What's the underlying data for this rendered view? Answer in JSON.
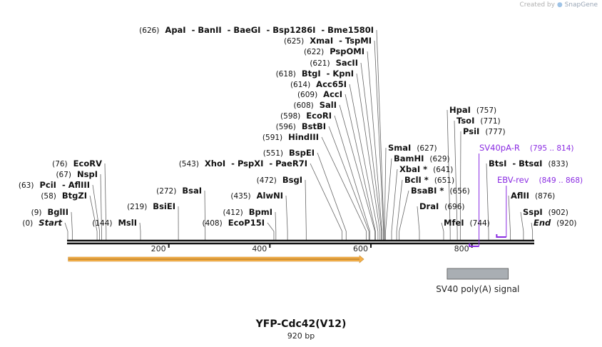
{
  "credit": {
    "prefix": "Created by",
    "brand": "SnapGene"
  },
  "plasmid": {
    "name": "YFP-Cdc42(V12)",
    "length_label": "920 bp",
    "length": 920
  },
  "ruler_ticks": [
    {
      "pos": 200,
      "label": "200"
    },
    {
      "pos": 400,
      "label": "400"
    },
    {
      "pos": 600,
      "label": "600"
    },
    {
      "pos": 800,
      "label": "800"
    }
  ],
  "labels": [
    {
      "text": "(626)  ApaI  - BanII  - BaeGI  - Bsp1286I  - Bme1580I",
      "pos": 626
    },
    {
      "text": "(625)  XmaI  - TspMI",
      "pos": 625
    },
    {
      "text": "(622)  PspOMI",
      "pos": 622
    },
    {
      "text": "(621)  SacII",
      "pos": 621
    },
    {
      "text": "(618)  BtgI  - KpnI",
      "pos": 618
    },
    {
      "text": "(614)  Acc65I",
      "pos": 614
    },
    {
      "text": "(609)  AccI",
      "pos": 609
    },
    {
      "text": "(608)  SalI",
      "pos": 608
    },
    {
      "text": "(598)  EcoRI",
      "pos": 598
    },
    {
      "text": "(596)  BstBI",
      "pos": 596
    },
    {
      "text": "(591)  HindIII",
      "pos": 591
    },
    {
      "text": "(551)  BspEI",
      "pos": 551
    },
    {
      "text": "(543)  XhoI  - PspXI  - PaeR7I",
      "pos": 543
    },
    {
      "text": "(472)  BsgI",
      "pos": 472
    },
    {
      "text": "(435)  AlwNI",
      "pos": 435
    },
    {
      "text": "(412)  BpmI",
      "pos": 412
    },
    {
      "text": "(408)  EcoP15I",
      "pos": 408
    },
    {
      "text": "(272)  BsaI",
      "pos": 272
    },
    {
      "text": "(219)  BsiEI",
      "pos": 219
    },
    {
      "text": "(144)  MslI",
      "pos": 144
    },
    {
      "text": "(76)  EcoRV",
      "pos": 76
    },
    {
      "text": "(67)  NspI",
      "pos": 67
    },
    {
      "text": "(63)  PciI  - AflIII",
      "pos": 63
    },
    {
      "text": "(58)  BtgZI",
      "pos": 58
    },
    {
      "text": "(9)  BglII",
      "pos": 9
    },
    {
      "text": "(0)  Start",
      "pos": 0
    },
    {
      "text": "SmaI  (627)",
      "pos": 627
    },
    {
      "text": "BamHI  (629)",
      "pos": 629
    },
    {
      "text": "XbaI *  (641)",
      "pos": 641
    },
    {
      "text": "BclI *  (651)",
      "pos": 651
    },
    {
      "text": "BsaBI *  (656)",
      "pos": 656
    },
    {
      "text": "DraI  (696)",
      "pos": 696
    },
    {
      "text": "MfeI  (744)",
      "pos": 744
    },
    {
      "text": "HpaI  (757)",
      "pos": 757
    },
    {
      "text": "TsoI  (771)",
      "pos": 771
    },
    {
      "text": "PsiI  (777)",
      "pos": 777
    },
    {
      "text": "BtsI  - BtsαI  (833)",
      "pos": 833
    },
    {
      "text": "AflII  (876)",
      "pos": 876
    },
    {
      "text": "SspI  (902)",
      "pos": 902
    },
    {
      "text": "End  (920)",
      "pos": 920
    }
  ],
  "primers": [
    {
      "name": "SV40pA-R",
      "range": "(795 .. 814)",
      "start": 795,
      "end": 814,
      "direction": "reverse"
    },
    {
      "name": "EBV-rev",
      "range": "(849 .. 868)",
      "start": 849,
      "end": 868,
      "direction": "reverse"
    }
  ],
  "features": [
    {
      "name": "",
      "type": "orf",
      "start": 1,
      "end": 586,
      "direction": "forward",
      "color": "#f5b04a"
    },
    {
      "name": "SV40 poly(A) signal",
      "type": "polyA",
      "start": 751,
      "end": 872,
      "direction": "none",
      "color": "#a9aeb3"
    }
  ],
  "colors": {
    "primer": "#8a2be2",
    "backbone": "#111111"
  }
}
